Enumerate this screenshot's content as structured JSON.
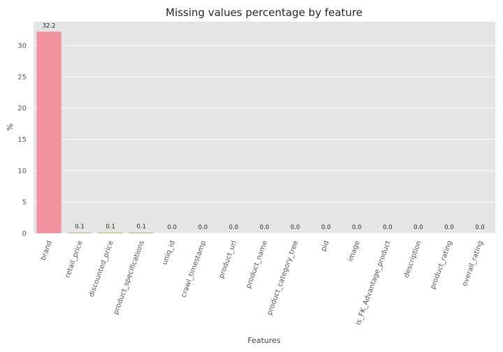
{
  "chart_data": {
    "type": "bar",
    "title": "Missing values percentage by feature",
    "xlabel": "Features",
    "ylabel": "%",
    "categories": [
      "brand",
      "retail_price",
      "discounted_price",
      "product_specifications",
      "uniq_id",
      "crawl_timestamp",
      "product_url",
      "product_name",
      "product_category_tree",
      "pid",
      "image",
      "is_FK_Advantage_product",
      "description",
      "product_rating",
      "overall_rating"
    ],
    "values": [
      32.2,
      0.1,
      0.1,
      0.1,
      0.0,
      0.0,
      0.0,
      0.0,
      0.0,
      0.0,
      0.0,
      0.0,
      0.0,
      0.0,
      0.0
    ],
    "data_labels": [
      "32.2",
      "0.1",
      "0.1",
      "0.1",
      "0.0",
      "0.0",
      "0.0",
      "0.0",
      "0.0",
      "0.0",
      "0.0",
      "0.0",
      "0.0",
      "0.0",
      "0.0"
    ],
    "yticks": [
      0,
      5,
      10,
      15,
      20,
      25,
      30
    ],
    "ylim": [
      0,
      33.8
    ],
    "grid": true,
    "legend": "none",
    "colors": {
      "plot_background": "#e5e5e5",
      "grid": "#ffffff",
      "bar_palette": [
        "#f0939f",
        "#e9a26a",
        "#c9b25a",
        "#a6b85a",
        "#6cbf6a",
        "#5bbf93",
        "#5bbfae",
        "#5ab8c2",
        "#5fb3d4",
        "#7aa7e6",
        "#9e9cec",
        "#c48fe8",
        "#e083d9",
        "#ef86bd",
        "#f38ba8"
      ]
    }
  }
}
